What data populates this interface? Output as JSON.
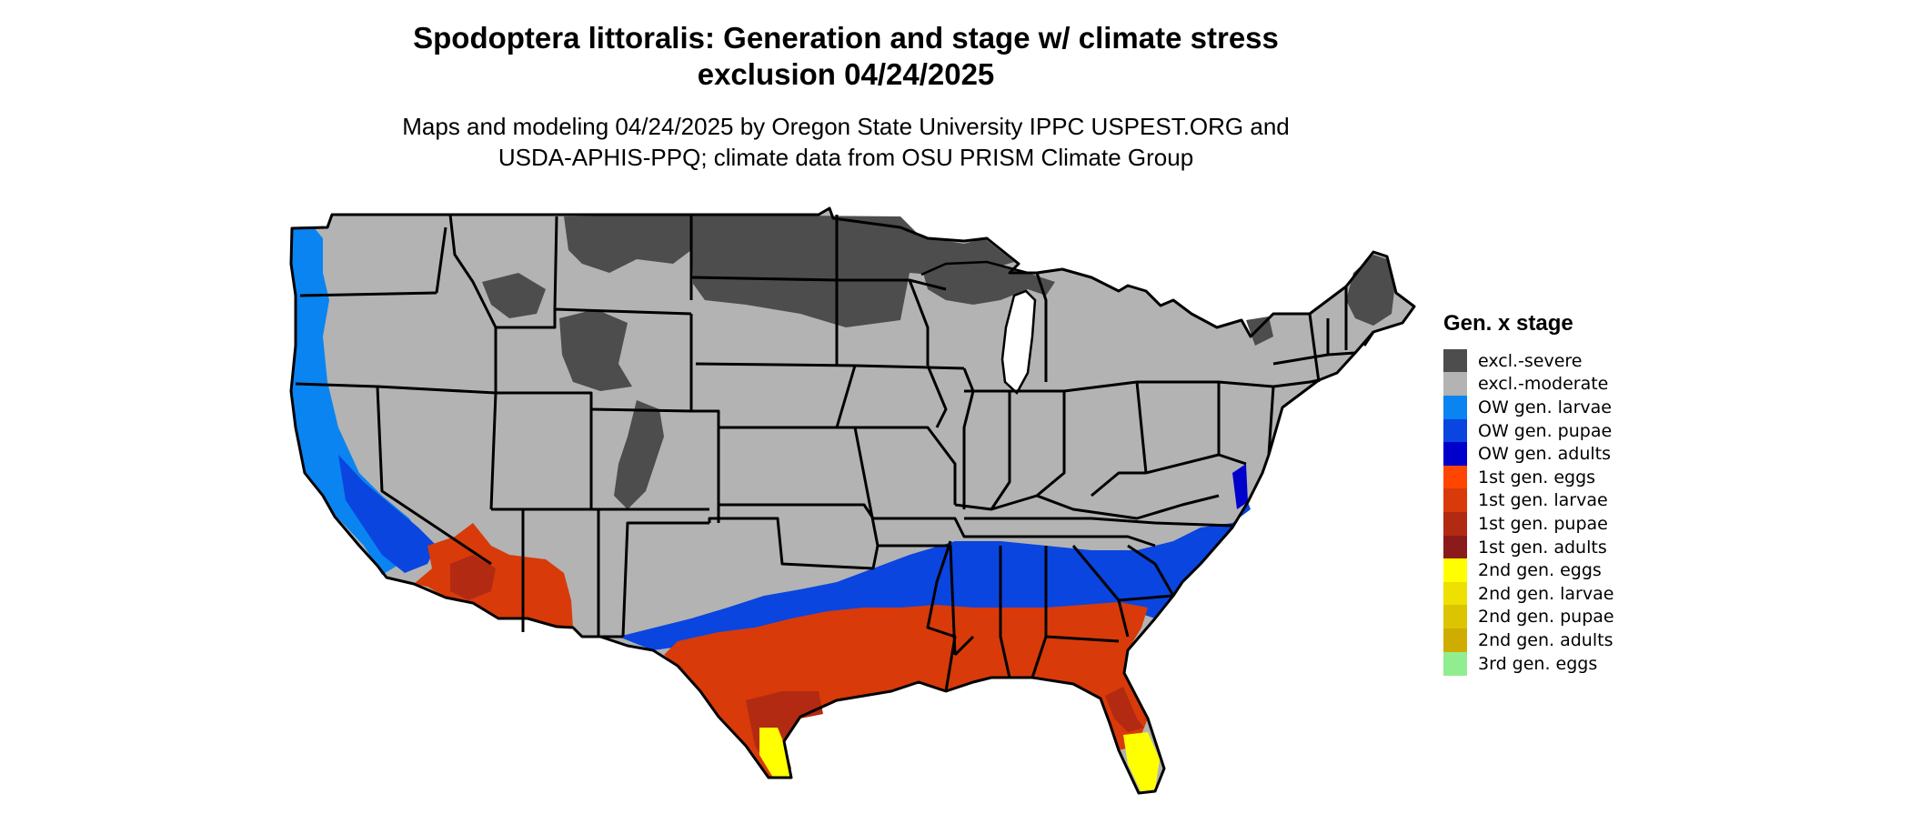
{
  "title": {
    "line1": "Spodoptera littoralis: Generation and stage w/ climate stress",
    "line2": "exclusion 04/24/2025"
  },
  "subtitle": {
    "line1": "Maps and modeling 04/24/2025 by Oregon State University IPPC USPEST.ORG and",
    "line2": "USDA-APHIS-PPQ; climate data from OSU PRISM Climate Group"
  },
  "legend": {
    "title": "Gen. x stage",
    "items": [
      {
        "label": "excl.-severe",
        "color": "#4d4d4d"
      },
      {
        "label": "excl.-moderate",
        "color": "#b3b3b3"
      },
      {
        "label": "OW gen. larvae",
        "color": "#0a84f0"
      },
      {
        "label": "OW gen. pupae",
        "color": "#0a45e0"
      },
      {
        "label": "OW gen. adults",
        "color": "#0000cc"
      },
      {
        "label": "1st gen. eggs",
        "color": "#ff4500"
      },
      {
        "label": "1st gen. larvae",
        "color": "#d83a0a"
      },
      {
        "label": "1st gen. pupae",
        "color": "#b22a12"
      },
      {
        "label": "1st gen. adults",
        "color": "#8b1a1a"
      },
      {
        "label": "2nd gen. eggs",
        "color": "#ffff00"
      },
      {
        "label": "2nd gen. larvae",
        "color": "#eee000"
      },
      {
        "label": "2nd gen. pupae",
        "color": "#ddc400"
      },
      {
        "label": "2nd gen. adults",
        "color": "#cfac00"
      },
      {
        "label": "3rd gen. eggs",
        "color": "#90ee90"
      }
    ]
  }
}
